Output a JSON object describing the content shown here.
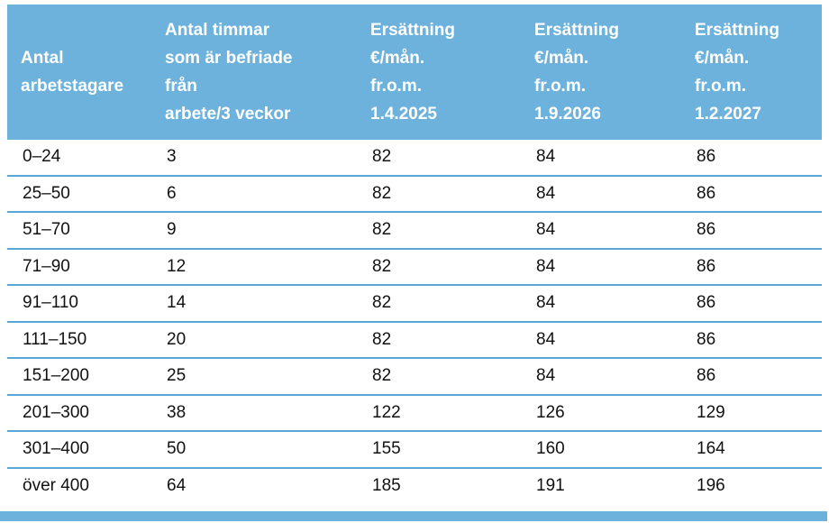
{
  "theme": {
    "page_bg": "#FFFFFF",
    "header_bg": "#6CB2DC",
    "divider": "#5BA7D8",
    "header_text": "#FFFFFF",
    "body_text": "#111111"
  },
  "table": {
    "columns": [
      {
        "label": "Antal\narbetstagare"
      },
      {
        "label": "Antal timmar\nsom är befriade\nfrån\narbete/3 veckor"
      },
      {
        "label": "Ersättning\n€/mån.\nfr.o.m.\n1.4.2025"
      },
      {
        "label": "Ersättning\n€/mån.\nfr.o.m.\n1.9.2026"
      },
      {
        "label": "Ersättning\n€/mån.\nfr.o.m.\n1.2.2027"
      }
    ],
    "rows": [
      [
        "0–24",
        "3",
        "82",
        "84",
        "86"
      ],
      [
        "25–50",
        "6",
        "82",
        "84",
        "86"
      ],
      [
        "51–70",
        "9",
        "82",
        "84",
        "86"
      ],
      [
        "71–90",
        "12",
        "82",
        "84",
        "86"
      ],
      [
        "91–110",
        "14",
        "82",
        "84",
        "86"
      ],
      [
        "111–150",
        "20",
        "82",
        "84",
        "86"
      ],
      [
        "151–200",
        "25",
        "82",
        "84",
        "86"
      ],
      [
        "201–300",
        "38",
        "122",
        "126",
        "129"
      ],
      [
        "301–400",
        "50",
        "155",
        "160",
        "164"
      ],
      [
        "över 400",
        "64",
        "185",
        "191",
        "196"
      ]
    ]
  }
}
